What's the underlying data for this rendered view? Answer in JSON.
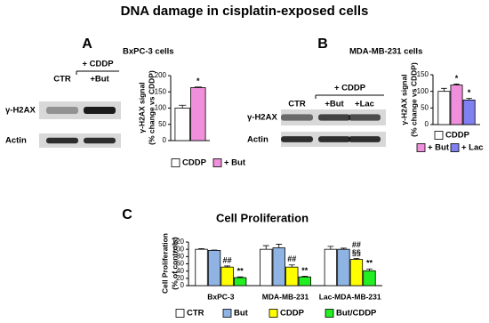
{
  "title": "DNA damage in cisplatin-exposed cells",
  "blots": [
    {
      "treatment": "+ CDDP",
      "lanes": [
        "CTR",
        "+But"
      ],
      "rows": [
        "γ-H2AX",
        "Actin"
      ]
    },
    {
      "treatment": "+ CDDP",
      "lanes": [
        "CTR",
        "+But",
        "+Lac"
      ],
      "rows": [
        "γ-H2AX",
        "Actin"
      ]
    }
  ],
  "chart_data": [
    {
      "type": "bar",
      "panel": "A",
      "subtitle": "BxPC-3 cells",
      "ylabel": [
        "γ-H2AX signal",
        "(% change vs CDDP)"
      ],
      "categories": [
        null
      ],
      "series": [
        {
          "name": "CDDP",
          "color": "#ffffff",
          "values": [
            100
          ],
          "errors": [
            9
          ],
          "annotations": [
            null
          ]
        },
        {
          "name": "+ But",
          "color": "#f090dc",
          "values": [
            163
          ],
          "errors": [
            2
          ],
          "annotations": [
            "*"
          ]
        }
      ],
      "ylim": [
        0,
        200
      ],
      "yticks": [
        0,
        50,
        100,
        150,
        200
      ]
    },
    {
      "type": "bar",
      "panel": "B",
      "subtitle": "MDA-MB-231 cells",
      "ylabel": [
        "γ-H2AX signal",
        "(% change vs CDDP)"
      ],
      "categories": [
        null
      ],
      "series": [
        {
          "name": "CDDP",
          "color": "#ffffff",
          "values": [
            100
          ],
          "errors": [
            9
          ],
          "annotations": [
            null
          ]
        },
        {
          "name": "+ But",
          "color": "#f090dc",
          "values": [
            119
          ],
          "errors": [
            3
          ],
          "annotations": [
            "*"
          ]
        },
        {
          "name": "+ Lac",
          "color": "#8080f0",
          "values": [
            74
          ],
          "errors": [
            5
          ],
          "annotations": [
            "*"
          ]
        }
      ],
      "ylim": [
        0,
        150
      ],
      "yticks": [
        0,
        50,
        100,
        150
      ]
    },
    {
      "type": "bar",
      "panel": "C",
      "title": "Cell Proliferation",
      "ylabel": [
        "Cell Proliferation",
        "(% of controls)"
      ],
      "categories": [
        "BxPC-3",
        "MDA-MB-231",
        "Lac-MDA-MB-231"
      ],
      "series": [
        {
          "name": "CTR",
          "color": "#ffffff",
          "values": [
            100,
            100,
            100
          ],
          "errors": [
            2,
            10,
            8
          ],
          "annotations": [
            null,
            null,
            null
          ]
        },
        {
          "name": "But",
          "color": "#8fb4e3",
          "values": [
            97,
            104,
            100
          ],
          "errors": [
            1,
            10,
            3
          ],
          "annotations": [
            null,
            null,
            null
          ]
        },
        {
          "name": "CDDP",
          "color": "#ffff00",
          "values": [
            51,
            51,
            72
          ],
          "errors": [
            3,
            6,
            3
          ],
          "annotations": [
            "##",
            "##",
            [
              "##",
              "§§"
            ]
          ]
        },
        {
          "name": "But/CDDP",
          "color": "#22ee22",
          "values": [
            22,
            24,
            41
          ],
          "errors": [
            2,
            2,
            5
          ],
          "annotations": [
            "**",
            "**",
            "**"
          ]
        }
      ],
      "ylim": [
        0,
        120
      ],
      "yticks": [
        0,
        20,
        40,
        60,
        80,
        100,
        120
      ]
    }
  ]
}
